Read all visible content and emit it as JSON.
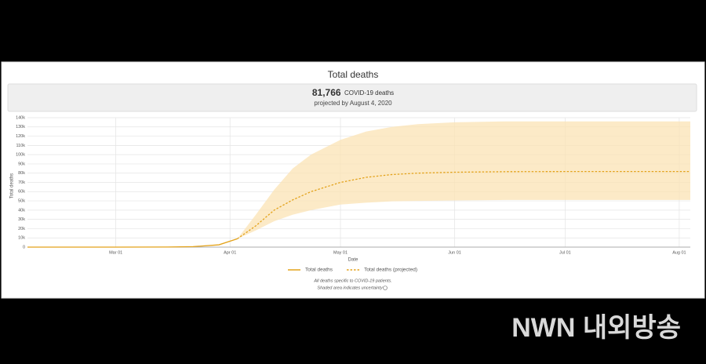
{
  "summary": {
    "count": "81,766",
    "count_unit": "COVID-19 deaths",
    "projection": "projected by August 4, 2020"
  },
  "notes": [
    "All deaths specific to COVID-19 patients.",
    "Shaded area indicates uncertainty"
  ],
  "watermark": "NWN 내외방송",
  "chart_data": {
    "type": "line",
    "title": "Total deaths",
    "x_label": "Date",
    "y_label": "Total deaths",
    "x": [
      "Feb 06",
      "Feb 15",
      "Mar 01",
      "Mar 15",
      "Mar 22",
      "Mar 29",
      "Apr 03",
      "Apr 08",
      "Apr 13",
      "Apr 18",
      "Apr 23",
      "May 01",
      "May 08",
      "May 15",
      "May 22",
      "Jun 01",
      "Jun 15",
      "Jul 01",
      "Jul 15",
      "Aug 01",
      "Aug 04"
    ],
    "series": [
      {
        "name": "Total deaths",
        "color": "#e3a21a",
        "dashed": false,
        "values": [
          0,
          0,
          0,
          100,
          500,
          2500,
          9000,
          null,
          null,
          null,
          null,
          null,
          null,
          null,
          null,
          null,
          null,
          null,
          null,
          null,
          null
        ]
      },
      {
        "name": "Total deaths (projected)",
        "color": "#e3a21a",
        "dashed": true,
        "values": [
          null,
          null,
          null,
          null,
          null,
          null,
          9000,
          23000,
          40000,
          51000,
          60000,
          70000,
          75500,
          78500,
          80000,
          81000,
          81600,
          81750,
          81760,
          81766,
          81766
        ]
      }
    ],
    "band": {
      "color": "#fbe3b4",
      "lower": [
        null,
        null,
        null,
        null,
        null,
        null,
        9000,
        18000,
        28000,
        35000,
        40000,
        46000,
        48000,
        49500,
        50000,
        50500,
        51000,
        51000,
        51000,
        51000,
        51000
      ],
      "upper": [
        null,
        null,
        null,
        null,
        null,
        null,
        9000,
        35000,
        62000,
        85000,
        100000,
        116000,
        125000,
        130000,
        133000,
        135000,
        136000,
        136000,
        136000,
        136000,
        136000
      ]
    },
    "xlim": [
      "Feb 06",
      "Aug 04"
    ],
    "xticks": [
      "Mar 01",
      "Apr 01",
      "May 01",
      "Jun 01",
      "Jul 01",
      "Aug 01"
    ],
    "ylim": [
      0,
      140000
    ],
    "yticks": [
      0,
      {
        "value": 10000,
        "label": "10k"
      },
      {
        "value": 20000,
        "label": "20k"
      },
      {
        "value": 30000,
        "label": "30k"
      },
      {
        "value": 40000,
        "label": "40k"
      },
      {
        "value": 50000,
        "label": "50k"
      },
      {
        "value": 60000,
        "label": "60k"
      },
      {
        "value": 70000,
        "label": "70k"
      },
      {
        "value": 80000,
        "label": "80k"
      },
      {
        "value": 90000,
        "label": "90k"
      },
      {
        "value": 100000,
        "label": "100k"
      },
      {
        "value": 110000,
        "label": "110k"
      },
      {
        "value": 120000,
        "label": "120k"
      },
      {
        "value": 130000,
        "label": "130k"
      },
      {
        "value": 140000,
        "label": "140k"
      }
    ],
    "grid": true
  }
}
